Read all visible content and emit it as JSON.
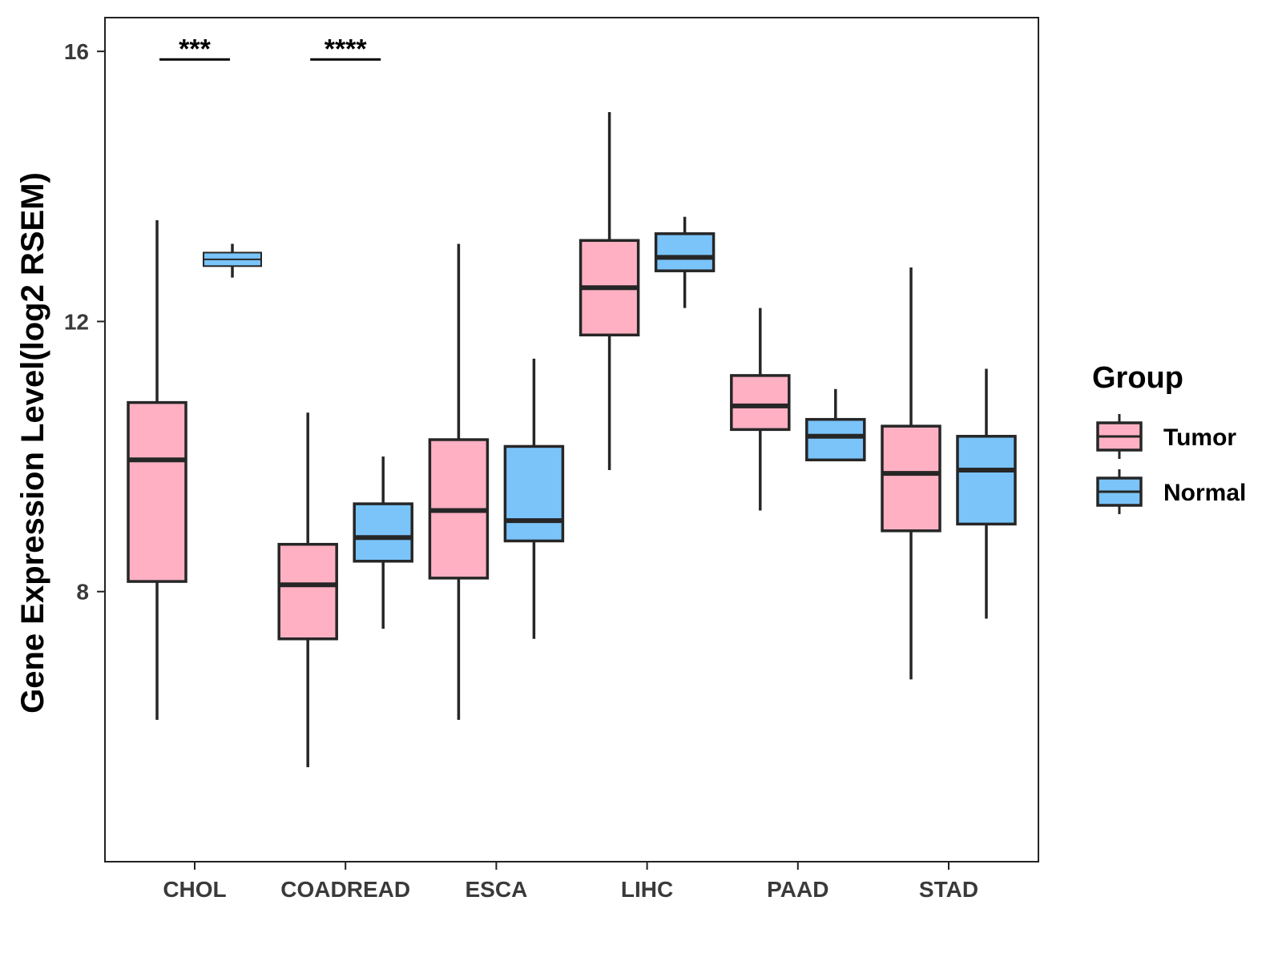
{
  "chart_data": {
    "type": "box",
    "title": "",
    "xlabel": "",
    "ylabel": "Gene Expression Level(log2 RSEM)",
    "ylim": [
      4.0,
      16.5
    ],
    "yticks": [
      8,
      12,
      16
    ],
    "grid": false,
    "categories": [
      "CHOL",
      "COADREAD",
      "ESCA",
      "LIHC",
      "PAAD",
      "STAD"
    ],
    "legend": {
      "title": "Group",
      "position": "right"
    },
    "series": [
      {
        "name": "Tumor",
        "color": "#FFB1C3",
        "boxes": [
          {
            "min": 6.1,
            "q1": 8.15,
            "median": 9.95,
            "q3": 10.8,
            "max": 13.5
          },
          {
            "min": 5.4,
            "q1": 7.3,
            "median": 8.1,
            "q3": 8.7,
            "max": 10.65
          },
          {
            "min": 6.1,
            "q1": 8.2,
            "median": 9.2,
            "q3": 10.25,
            "max": 13.15
          },
          {
            "min": 9.8,
            "q1": 11.8,
            "median": 12.5,
            "q3": 13.2,
            "max": 15.1
          },
          {
            "min": 9.2,
            "q1": 10.4,
            "median": 10.75,
            "q3": 11.2,
            "max": 12.2
          },
          {
            "min": 6.7,
            "q1": 8.9,
            "median": 9.75,
            "q3": 10.45,
            "max": 12.8
          }
        ]
      },
      {
        "name": "Normal",
        "color": "#7AC4FA",
        "boxes": [
          {
            "min": 12.65,
            "q1": 12.82,
            "median": 12.92,
            "q3": 13.02,
            "max": 13.15
          },
          {
            "min": 7.45,
            "q1": 8.45,
            "median": 8.8,
            "q3": 9.3,
            "max": 10.0
          },
          {
            "min": 7.3,
            "q1": 8.75,
            "median": 9.05,
            "q3": 10.15,
            "max": 11.45
          },
          {
            "min": 12.2,
            "q1": 12.75,
            "median": 12.95,
            "q3": 13.3,
            "max": 13.55
          },
          {
            "min": 9.95,
            "q1": 9.95,
            "median": 10.3,
            "q3": 10.55,
            "max": 11.0
          },
          {
            "min": 7.6,
            "q1": 9.0,
            "median": 9.8,
            "q3": 10.3,
            "max": 11.3
          }
        ]
      }
    ],
    "annotations": [
      {
        "category": "CHOL",
        "label": "***"
      },
      {
        "category": "COADREAD",
        "label": "****"
      }
    ]
  }
}
